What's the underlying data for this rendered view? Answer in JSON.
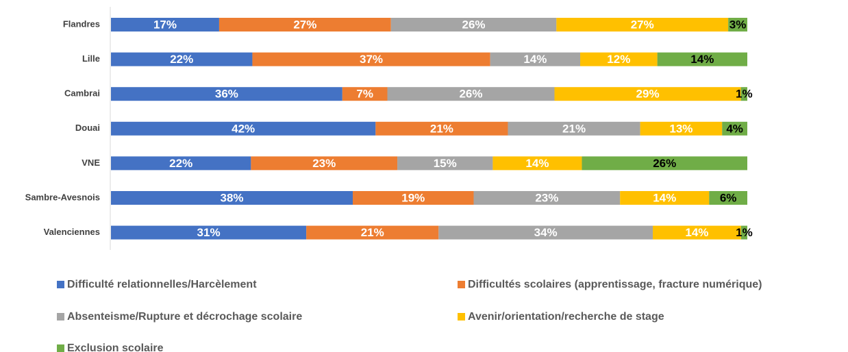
{
  "chart_data": {
    "type": "bar",
    "orientation": "horizontal",
    "stacking": "percent",
    "categories": [
      "Flandres",
      "Lille",
      "Cambrai",
      "Douai",
      "VNE",
      "Sambre-Avesnois",
      "Valenciennes"
    ],
    "series": [
      {
        "name": "Difficulté relationnelles/Harcèlement",
        "color": "#4472c4",
        "label_color": "#ffffff",
        "values": [
          17,
          22,
          36,
          42,
          22,
          38,
          31
        ],
        "value_labels": [
          "17%",
          "22%",
          "36%",
          "42%",
          "22%",
          "38%",
          "31%"
        ]
      },
      {
        "name": "Difficultés scolaires (apprentissage, fracture numérique)",
        "color": "#ed7d31",
        "label_color": "#ffffff",
        "values": [
          27,
          37,
          7,
          21,
          23,
          19,
          21
        ],
        "value_labels": [
          "27%",
          "37%",
          "7%",
          "21%",
          "23%",
          "19%",
          "21%"
        ]
      },
      {
        "name": "Absenteisme/Rupture et décrochage scolaire",
        "color": "#a5a5a5",
        "label_color": "#ffffff",
        "values": [
          26,
          14,
          26,
          21,
          15,
          23,
          34
        ],
        "value_labels": [
          "26%",
          "14%",
          "26%",
          "21%",
          "15%",
          "23%",
          "34%"
        ]
      },
      {
        "name": "Avenir/orientation/recherche de stage",
        "color": "#ffc000",
        "label_color": "#ffffff",
        "values": [
          27,
          12,
          29,
          13,
          14,
          14,
          14
        ],
        "value_labels": [
          "27%",
          "12%",
          "29%",
          "13%",
          "14%",
          "14%",
          "14%"
        ]
      },
      {
        "name": "Exclusion scolaire",
        "color": "#70ad47",
        "label_color": "#000000",
        "values": [
          3,
          14,
          1,
          4,
          26,
          6,
          1
        ],
        "value_labels": [
          "3%",
          "14%",
          "1%",
          "4%",
          "26%",
          "6%",
          "1%"
        ]
      }
    ]
  }
}
